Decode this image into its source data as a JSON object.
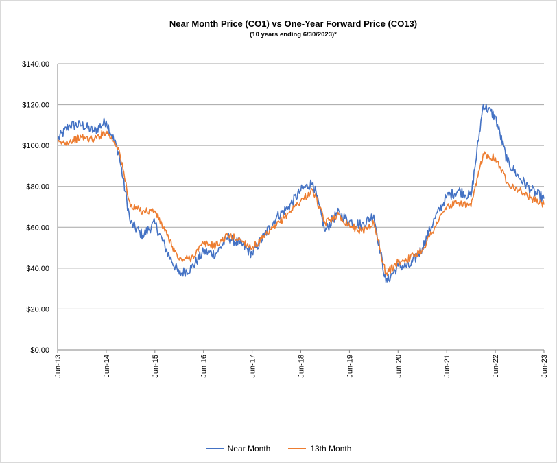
{
  "chart_data": {
    "type": "line",
    "title": "Near Month Price (CO1) vs One-Year Forward Price  (CO13)",
    "subtitle": "(10 years ending  6/30/2023)*",
    "y_tick_labels": [
      "$0.00",
      "$20.00",
      "$40.00",
      "$60.00",
      "$80.00",
      "$100.00",
      "$120.00",
      "$140.00"
    ],
    "ylim": [
      0,
      140
    ],
    "x_tick_labels": [
      "Jun-13",
      "Jun-14",
      "Jun-15",
      "Jun-16",
      "Jun-17",
      "Jun-18",
      "Jun-19",
      "Jun-20",
      "Jun-21",
      "Jun-22",
      "Jun-23"
    ],
    "xlim": [
      "2013-06",
      "2023-06"
    ],
    "grid": "horizontal",
    "legend_position": "bottom",
    "x": [
      "2013-06",
      "2013-09",
      "2013-12",
      "2014-03",
      "2014-06",
      "2014-09",
      "2014-12",
      "2015-03",
      "2015-06",
      "2015-09",
      "2015-12",
      "2016-03",
      "2016-06",
      "2016-09",
      "2016-12",
      "2017-03",
      "2017-06",
      "2017-09",
      "2017-12",
      "2018-03",
      "2018-06",
      "2018-09",
      "2018-12",
      "2019-03",
      "2019-06",
      "2019-09",
      "2019-12",
      "2020-03",
      "2020-06",
      "2020-09",
      "2020-12",
      "2021-03",
      "2021-06",
      "2021-09",
      "2021-12",
      "2022-03",
      "2022-06",
      "2022-09",
      "2022-12",
      "2023-03",
      "2023-06"
    ],
    "series": [
      {
        "name": "Near Month",
        "color": "#4472c4",
        "values": [
          103,
          110,
          110,
          107,
          112,
          97,
          62,
          56,
          62,
          48,
          37,
          40,
          48,
          47,
          55,
          52,
          47,
          56,
          65,
          70,
          78,
          82,
          58,
          67,
          63,
          61,
          66,
          33,
          41,
          41,
          50,
          64,
          75,
          78,
          75,
          120,
          114,
          92,
          84,
          78,
          74
        ]
      },
      {
        "name": "13th Month",
        "color": "#ed7d31",
        "values": [
          101,
          102,
          104,
          103,
          107,
          99,
          70,
          68,
          68,
          56,
          44,
          45,
          52,
          51,
          56,
          54,
          50,
          55,
          61,
          67,
          73,
          78,
          62,
          66,
          61,
          58,
          62,
          37,
          43,
          45,
          49,
          60,
          70,
          72,
          70,
          96,
          94,
          82,
          78,
          74,
          71
        ]
      }
    ]
  }
}
